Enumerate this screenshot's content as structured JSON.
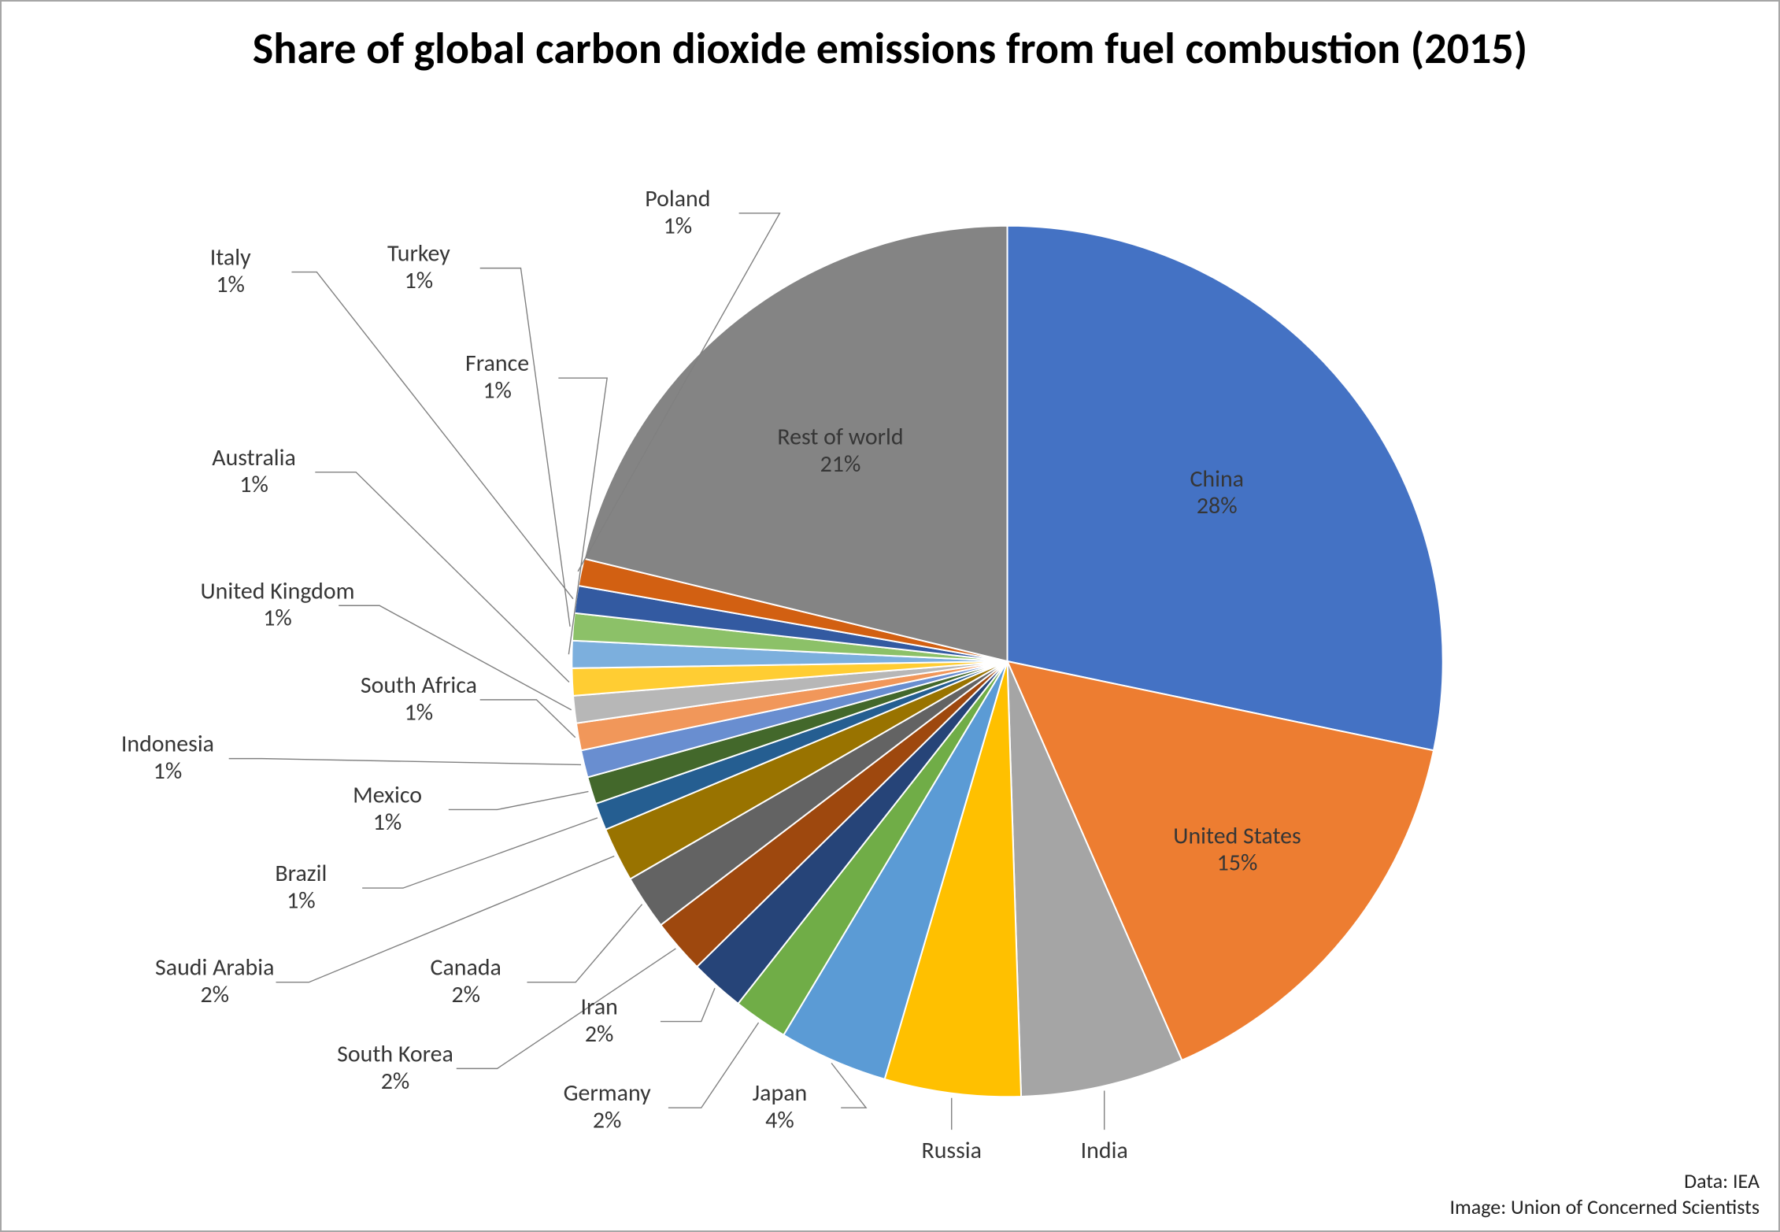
{
  "chart": {
    "type": "pie",
    "title": "Share of global carbon dioxide emissions from fuel combustion (2015)",
    "title_fontsize": 56,
    "title_weight": "700",
    "title_color": "#000000",
    "background_color": "#ffffff",
    "border_color": "#a6a6a6",
    "pie_border_color": "#ffffff",
    "pie_border_width": 2,
    "leader_line_color": "#808080",
    "label_fontsize": 30,
    "label_color": "#363636",
    "data_credit": "Data: IEA",
    "image_credit": "Image: Union of Concerned Scientists",
    "credit_fontsize": 26,
    "credit_color": "#222222",
    "slices": [
      {
        "label": "China",
        "value": 28,
        "color": "#4472c4"
      },
      {
        "label": "United States",
        "value": 15,
        "color": "#ed7d31"
      },
      {
        "label": "India",
        "value": 6,
        "color": "#a5a5a5"
      },
      {
        "label": "Russia",
        "value": 5,
        "color": "#ffc000"
      },
      {
        "label": "Japan",
        "value": 4,
        "color": "#5b9bd5"
      },
      {
        "label": "Germany",
        "value": 2,
        "color": "#70ad47"
      },
      {
        "label": "Iran",
        "value": 2,
        "color": "#264478"
      },
      {
        "label": "South Korea",
        "value": 2,
        "color": "#9e480e"
      },
      {
        "label": "Canada",
        "value": 2,
        "color": "#636363"
      },
      {
        "label": "Saudi Arabia",
        "value": 2,
        "color": "#997300"
      },
      {
        "label": "Brazil",
        "value": 1,
        "color": "#255e91"
      },
      {
        "label": "Mexico",
        "value": 1,
        "color": "#43682b"
      },
      {
        "label": "Indonesia",
        "value": 1,
        "color": "#698ed0"
      },
      {
        "label": "South Africa",
        "value": 1,
        "color": "#f1975a"
      },
      {
        "label": "United Kingdom",
        "value": 1,
        "color": "#b7b7b7"
      },
      {
        "label": "Australia",
        "value": 1,
        "color": "#ffcd33"
      },
      {
        "label": "France",
        "value": 1,
        "color": "#7cafdd"
      },
      {
        "label": "Turkey",
        "value": 1,
        "color": "#8cc168"
      },
      {
        "label": "Italy",
        "value": 1,
        "color": "#335aa1"
      },
      {
        "label": "Poland",
        "value": 1,
        "color": "#d26012"
      },
      {
        "label": "Rest of world",
        "value": 21,
        "color": "#848484"
      }
    ]
  }
}
